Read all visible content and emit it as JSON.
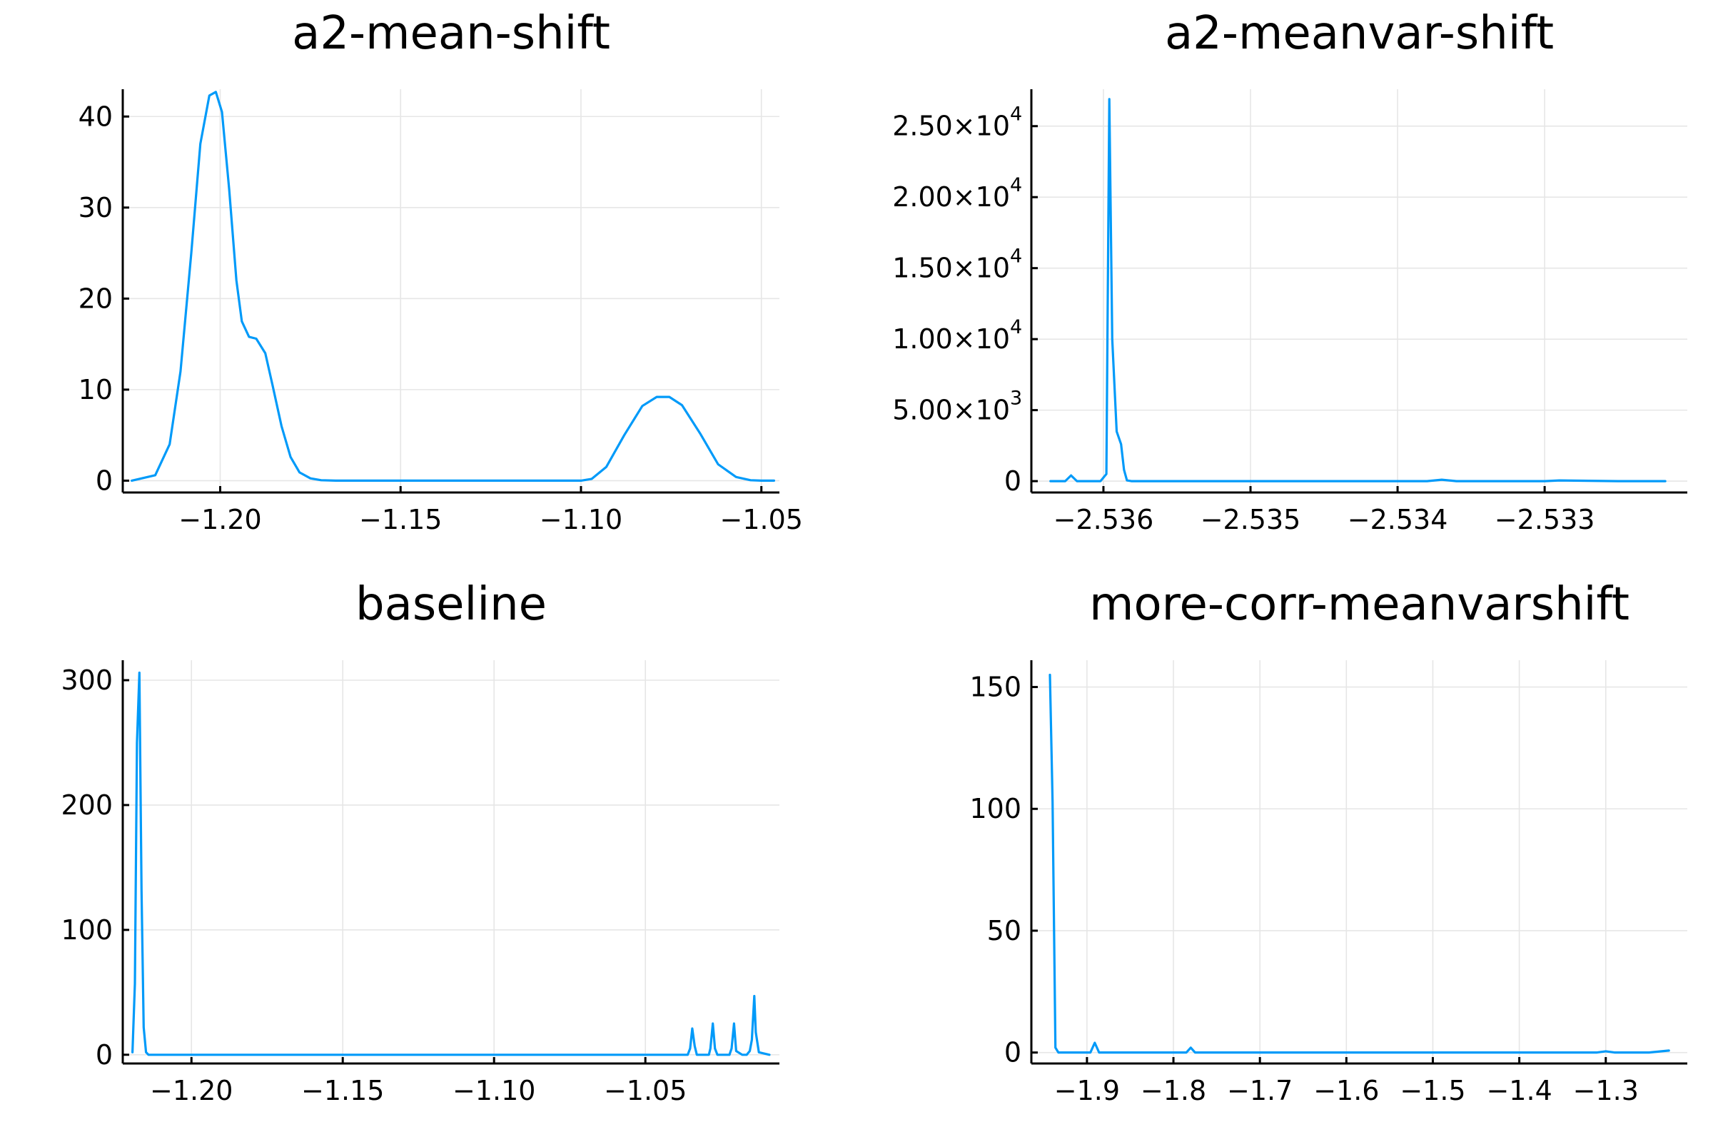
{
  "colors": {
    "series": "#009af9"
  },
  "chart_data": [
    {
      "type": "line",
      "title": "a2-mean-shift",
      "xlim": [
        -1.227,
        -1.045
      ],
      "ylim": [
        -1.3,
        43
      ],
      "xticks": [
        {
          "value": -1.2,
          "label": "−1.20"
        },
        {
          "value": -1.15,
          "label": "−1.15"
        },
        {
          "value": -1.1,
          "label": "−1.10"
        },
        {
          "value": -1.05,
          "label": "−1.05"
        }
      ],
      "yticks": [
        {
          "value": 0,
          "label": "0"
        },
        {
          "value": 10,
          "label": "10"
        },
        {
          "value": 20,
          "label": "20"
        },
        {
          "value": 30,
          "label": "30"
        },
        {
          "value": 40,
          "label": "40"
        }
      ],
      "grid": true,
      "series": [
        {
          "x": [
            -1.2245,
            -1.218,
            -1.214,
            -1.211,
            -1.208,
            -1.2055,
            -1.203,
            -1.2012,
            -1.1995,
            -1.1975,
            -1.1955,
            -1.194,
            -1.192,
            -1.19,
            -1.1875,
            -1.1855,
            -1.183,
            -1.1805,
            -1.178,
            -1.175,
            -1.172,
            -1.168,
            -1.16,
            -1.14,
            -1.12,
            -1.1,
            -1.097,
            -1.093,
            -1.088,
            -1.083,
            -1.079,
            -1.0755,
            -1.072,
            -1.067,
            -1.062,
            -1.057,
            -1.053,
            -1.05,
            -1.0465
          ],
          "y": [
            0,
            0.6,
            4,
            12,
            25,
            37,
            42.3,
            42.7,
            40.5,
            32,
            22,
            17.5,
            15.8,
            15.6,
            14,
            10.5,
            6,
            2.6,
            0.9,
            0.25,
            0.05,
            0,
            0,
            0,
            0,
            0,
            0.2,
            1.5,
            5,
            8.2,
            9.2,
            9.2,
            8.3,
            5.2,
            1.8,
            0.4,
            0.05,
            0,
            0
          ]
        }
      ]
    },
    {
      "type": "line",
      "title": "a2-meanvar-shift",
      "xlim": [
        -2.53649,
        -2.53203
      ],
      "ylim": [
        -800,
        27600
      ],
      "xticks": [
        {
          "value": -2.536,
          "label": "−2.536"
        },
        {
          "value": -2.535,
          "label": "−2.535"
        },
        {
          "value": -2.534,
          "label": "−2.534"
        },
        {
          "value": -2.533,
          "label": "−2.533"
        }
      ],
      "yticks": [
        {
          "value": 0,
          "label": "0"
        },
        {
          "value": 5000,
          "label": "5.00×10",
          "exp": "3"
        },
        {
          "value": 10000,
          "label": "1.00×10",
          "exp": "4"
        },
        {
          "value": 15000,
          "label": "1.50×10",
          "exp": "4"
        },
        {
          "value": 20000,
          "label": "2.00×10",
          "exp": "4"
        },
        {
          "value": 25000,
          "label": "2.50×10",
          "exp": "4"
        }
      ],
      "grid": true,
      "series": [
        {
          "x": [
            -2.53636,
            -2.53626,
            -2.53622,
            -2.53618,
            -2.53614,
            -2.53602,
            -2.53598,
            -2.53596,
            -2.53594,
            -2.53591,
            -2.53588,
            -2.53586,
            -2.53584,
            -2.53581,
            -2.5357,
            -2.535,
            -2.534,
            -2.5338,
            -2.5337,
            -2.5336,
            -2.533,
            -2.5329,
            -2.5325,
            -2.53218
          ],
          "y": [
            0,
            0,
            400,
            0,
            0,
            0,
            500,
            26900,
            10000,
            3500,
            2600,
            800,
            50,
            0,
            0,
            0,
            0,
            0,
            100,
            0,
            0,
            50,
            0,
            0
          ]
        }
      ]
    },
    {
      "type": "line",
      "title": "baseline",
      "xlim": [
        -1.2227,
        -1.0057
      ],
      "ylim": [
        -7,
        316
      ],
      "xticks": [
        {
          "value": -1.2,
          "label": "−1.20"
        },
        {
          "value": -1.15,
          "label": "−1.15"
        },
        {
          "value": -1.1,
          "label": "−1.10"
        },
        {
          "value": -1.05,
          "label": "−1.05"
        }
      ],
      "yticks": [
        {
          "value": 0,
          "label": "0"
        },
        {
          "value": 100,
          "label": "100"
        },
        {
          "value": 200,
          "label": "200"
        },
        {
          "value": 300,
          "label": "300"
        }
      ],
      "grid": true,
      "series": [
        {
          "x": [
            -1.2195,
            -1.2187,
            -1.218,
            -1.2172,
            -1.2165,
            -1.2158,
            -1.215,
            -1.2142,
            -1.213,
            -1.05,
            -1.036,
            -1.0352,
            -1.0345,
            -1.0337,
            -1.033,
            -1.029,
            -1.0285,
            -1.0277,
            -1.027,
            -1.0262,
            -1.0222,
            -1.0215,
            -1.0207,
            -1.02,
            -1.018,
            -1.0165,
            -1.0155,
            -1.0148,
            -1.014,
            -1.0135,
            -1.0125,
            -1.009
          ],
          "y": [
            2,
            57,
            250,
            306,
            131,
            22,
            2,
            0,
            0,
            0,
            0,
            5,
            21,
            7,
            0,
            0,
            5,
            25,
            5,
            0,
            0,
            5,
            25,
            3,
            0,
            0,
            3,
            12,
            47,
            18,
            2,
            0
          ]
        }
      ]
    },
    {
      "type": "line",
      "title": "more-corr-meanvarshift",
      "xlim": [
        -1.9643,
        -1.2057
      ],
      "ylim": [
        -4.5,
        161
      ],
      "xticks": [
        {
          "value": -1.9,
          "label": "−1.9"
        },
        {
          "value": -1.8,
          "label": "−1.8"
        },
        {
          "value": -1.7,
          "label": "−1.7"
        },
        {
          "value": -1.6,
          "label": "−1.6"
        },
        {
          "value": -1.5,
          "label": "−1.5"
        },
        {
          "value": -1.4,
          "label": "−1.4"
        },
        {
          "value": -1.3,
          "label": "−1.3"
        }
      ],
      "yticks": [
        {
          "value": 0,
          "label": "0"
        },
        {
          "value": 50,
          "label": "50"
        },
        {
          "value": 100,
          "label": "100"
        },
        {
          "value": 150,
          "label": "150"
        }
      ],
      "grid": true,
      "series": [
        {
          "x": [
            -1.9428,
            -1.9398,
            -1.9365,
            -1.933,
            -1.9,
            -1.896,
            -1.891,
            -1.886,
            -1.785,
            -1.78,
            -1.775,
            -1.31,
            -1.3,
            -1.29,
            -1.25,
            -1.227
          ],
          "y": [
            155,
            103,
            2,
            0,
            0,
            0,
            4,
            0,
            0,
            2,
            0,
            0,
            0.5,
            0,
            0,
            0.8
          ]
        }
      ]
    }
  ]
}
